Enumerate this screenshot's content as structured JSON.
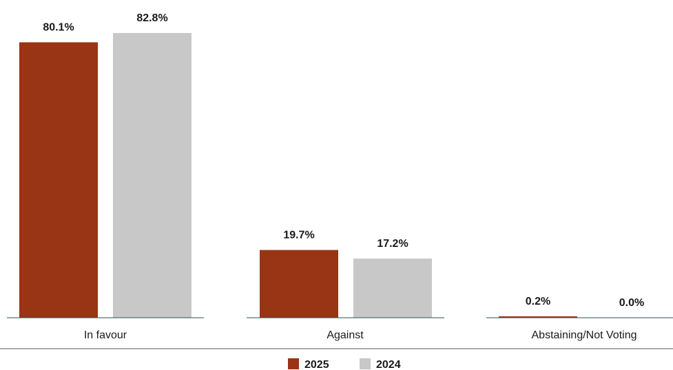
{
  "chart_data": {
    "type": "bar",
    "categories": [
      "In favour",
      "Against",
      "Abstaining/Not Voting"
    ],
    "series": [
      {
        "name": "2025",
        "values": [
          80.1,
          19.7,
          0.2
        ],
        "labels": [
          "80.1%",
          "19.7%",
          "0.2%"
        ],
        "color": "#993414"
      },
      {
        "name": "2024",
        "values": [
          82.8,
          17.2,
          0.0
        ],
        "labels": [
          "82.8%",
          "17.2%",
          "0.0%"
        ],
        "color": "#c8c8c8"
      }
    ],
    "ylim": [
      0,
      100
    ],
    "grid": false,
    "legend_position": "bottom-center",
    "axis_color": "#2f4f4f",
    "separator_color": "#555555"
  }
}
